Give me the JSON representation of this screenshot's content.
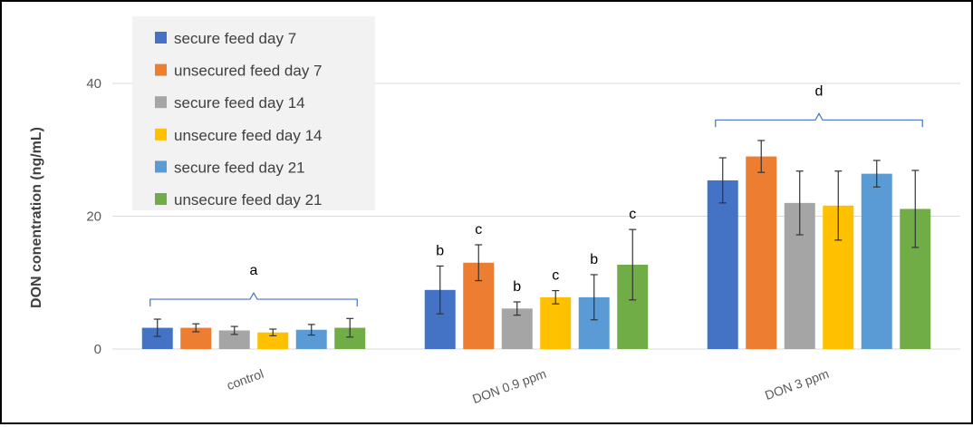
{
  "chart_data": {
    "type": "bar",
    "ylabel": "DON conentration (ng/mL)",
    "ylim": [
      0,
      48
    ],
    "yticks": [
      0,
      20,
      40
    ],
    "categories": [
      "control",
      "DON 0.9 ppm",
      "DON 3 ppm"
    ],
    "series": [
      {
        "name": "secure feed day 7",
        "color": "#4472C4",
        "values": [
          3.2,
          8.9,
          25.4
        ],
        "errors": [
          1.3,
          3.6,
          3.4
        ]
      },
      {
        "name": "unsecured feed day 7",
        "color": "#ED7D31",
        "values": [
          3.2,
          13.0,
          29.0
        ],
        "errors": [
          0.6,
          2.7,
          2.4
        ]
      },
      {
        "name": "secure feed day 14",
        "color": "#A5A5A5",
        "values": [
          2.8,
          6.1,
          22.0
        ],
        "errors": [
          0.6,
          1.0,
          4.8
        ]
      },
      {
        "name": "unsecure feed day 14",
        "color": "#FFC000",
        "values": [
          2.5,
          7.8,
          21.6
        ],
        "errors": [
          0.5,
          1.0,
          5.2
        ]
      },
      {
        "name": "secure feed day 21",
        "color": "#5B9BD5",
        "values": [
          2.9,
          7.8,
          26.4
        ],
        "errors": [
          0.8,
          3.4,
          2.0
        ]
      },
      {
        "name": "unsecure feed day 21",
        "color": "#70AD47",
        "values": [
          3.2,
          12.7,
          21.1
        ],
        "errors": [
          1.4,
          5.3,
          5.8
        ]
      }
    ],
    "bar_letters": [
      [
        "",
        "",
        "",
        "",
        "",
        ""
      ],
      [
        "b",
        "c",
        "b",
        "c",
        "b",
        "c"
      ],
      [
        "",
        "",
        "",
        "",
        "",
        ""
      ]
    ],
    "group_letters": [
      "a",
      "",
      "d"
    ],
    "group_bracket_values": [
      7.5,
      null,
      34.5
    ],
    "grid": true,
    "legend_position": "top-left"
  },
  "axis_color": "#D9D9D9",
  "grid_color": "#D9D9D9",
  "bracket_color": "#4472C4",
  "legend_background": "#F2F2F2"
}
